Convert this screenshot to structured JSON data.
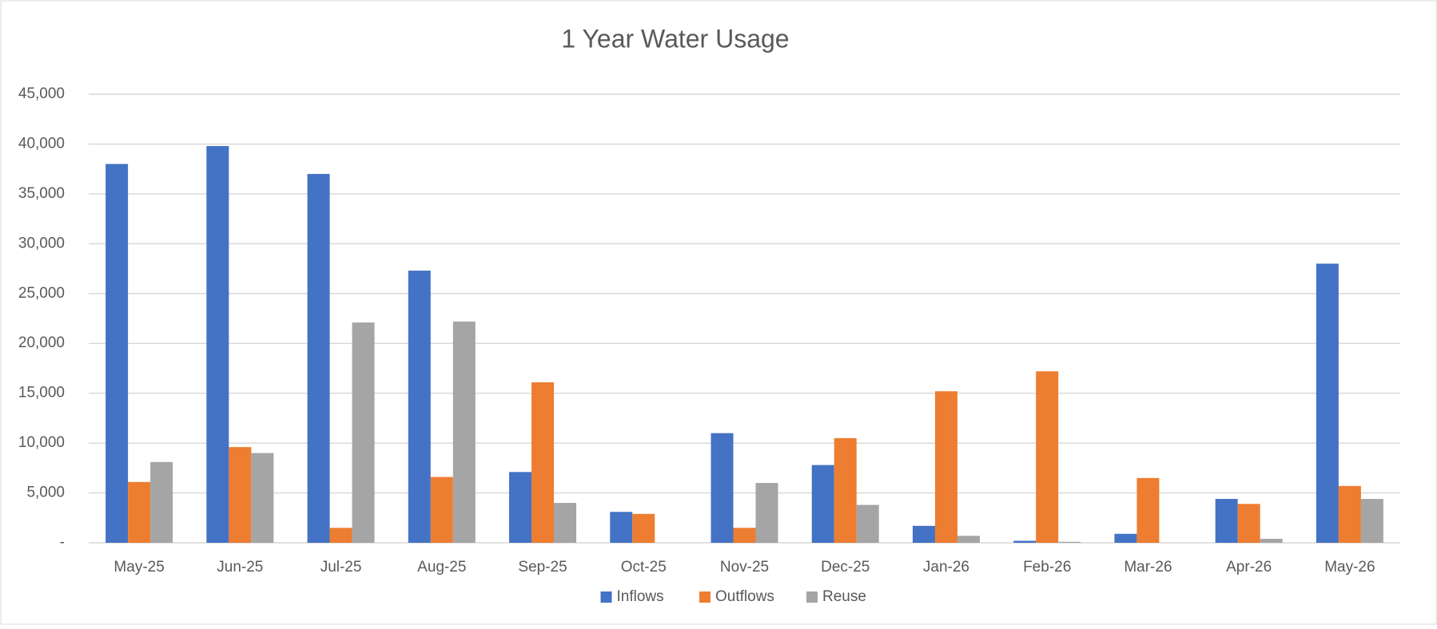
{
  "chart_data": {
    "type": "bar",
    "title": "1 Year Water Usage",
    "categories": [
      "May-25",
      "Jun-25",
      "Jul-25",
      "Aug-25",
      "Sep-25",
      "Oct-25",
      "Nov-25",
      "Dec-25",
      "Jan-26",
      "Feb-26",
      "Mar-26",
      "Apr-26",
      "May-26"
    ],
    "series": [
      {
        "name": "Inflows",
        "color": "#4472c4",
        "values": [
          38000,
          39800,
          37000,
          27300,
          7100,
          3100,
          11000,
          7800,
          1700,
          200,
          900,
          4400,
          28000
        ]
      },
      {
        "name": "Outflows",
        "color": "#ed7d31",
        "values": [
          6100,
          9600,
          1500,
          6600,
          16100,
          2900,
          1500,
          10500,
          15200,
          17200,
          6500,
          3900,
          5700
        ]
      },
      {
        "name": "Reuse",
        "color": "#a5a5a5",
        "values": [
          8100,
          9000,
          22100,
          22200,
          4000,
          0,
          6000,
          3800,
          700,
          100,
          0,
          400,
          4400
        ]
      }
    ],
    "ylim": [
      0,
      45000
    ],
    "yticks": [
      {
        "value": 0,
        "label": "-"
      },
      {
        "value": 5000,
        "label": "5,000"
      },
      {
        "value": 10000,
        "label": "10,000"
      },
      {
        "value": 15000,
        "label": "15,000"
      },
      {
        "value": 20000,
        "label": "20,000"
      },
      {
        "value": 25000,
        "label": "25,000"
      },
      {
        "value": 30000,
        "label": "30,000"
      },
      {
        "value": 35000,
        "label": "35,000"
      },
      {
        "value": 40000,
        "label": "40,000"
      },
      {
        "value": 45000,
        "label": "45,000"
      }
    ],
    "grid": true,
    "legend": "bottom"
  }
}
